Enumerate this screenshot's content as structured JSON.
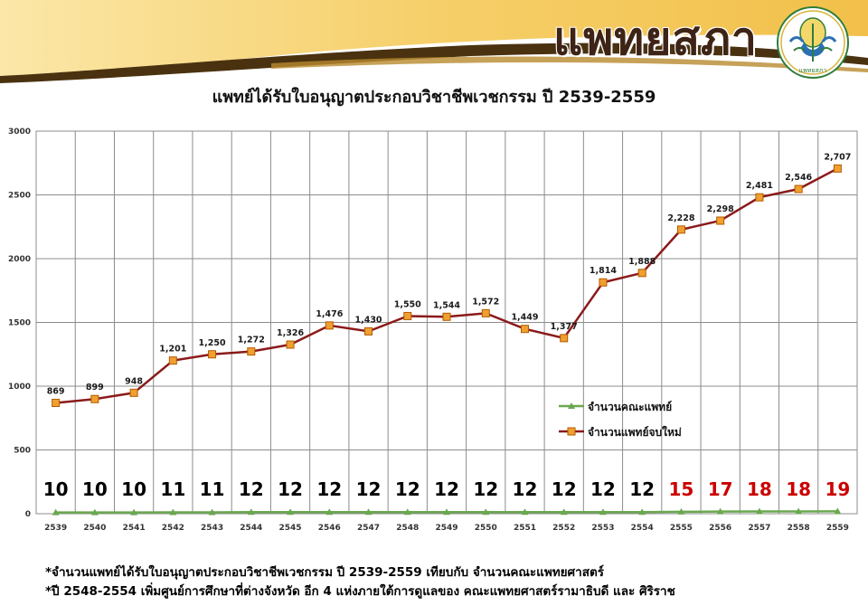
{
  "header": {
    "brand_title": "แพทยสภา",
    "logo_text": "แพทยสภา"
  },
  "colors": {
    "new_doctors_line": "#8b1a1a",
    "new_doctors_marker": "#f0a030",
    "faculties_line": "#6aa84f",
    "faculty_count_normal": "#000000",
    "faculty_count_highlight": "#cc0000",
    "banner_gold": "#f5c85e",
    "banner_dark": "#4a3210"
  },
  "chart_data": {
    "type": "line",
    "title": "แพทย์ได้รับใบอนุญาตประกอบวิชาชีพเวชกรรม ปี 2539-2559",
    "categories": [
      "2539",
      "2540",
      "2541",
      "2542",
      "2543",
      "2544",
      "2545",
      "2546",
      "2547",
      "2548",
      "2549",
      "2550",
      "2551",
      "2552",
      "2553",
      "2554",
      "2555",
      "2556",
      "2557",
      "2558",
      "2559"
    ],
    "ylim": [
      0,
      3000
    ],
    "yticks": [
      0,
      500,
      1000,
      1500,
      2000,
      2500,
      3000
    ],
    "grid": true,
    "legend_position": "right",
    "series": [
      {
        "name": "จำนวนคณะแพทย์",
        "marker": "triangle",
        "values": [
          10,
          10,
          10,
          11,
          11,
          12,
          12,
          12,
          12,
          12,
          12,
          12,
          12,
          12,
          12,
          12,
          15,
          17,
          18,
          18,
          19
        ]
      },
      {
        "name": "จำนวนแพทย์จบใหม่",
        "marker": "square",
        "values": [
          869,
          899,
          948,
          1201,
          1250,
          1272,
          1326,
          1476,
          1430,
          1550,
          1544,
          1572,
          1449,
          1377,
          1814,
          1888,
          2228,
          2298,
          2481,
          2546,
          2707
        ]
      }
    ],
    "new_doctor_labels": [
      "869",
      "899",
      "948",
      "1,201",
      "1,250",
      "1,272",
      "1,326",
      "1,476",
      "1,430",
      "1,550",
      "1,544",
      "1,572",
      "1,449",
      "1,377",
      "1,814",
      "1,888",
      "2,228",
      "2,298",
      "2,481",
      "2,546",
      "2,707"
    ],
    "faculty_labels": [
      "10",
      "10",
      "10",
      "11",
      "11",
      "12",
      "12",
      "12",
      "12",
      "12",
      "12",
      "12",
      "12",
      "12",
      "12",
      "12",
      "15",
      "17",
      "18",
      "18",
      "19"
    ],
    "highlight_from_index": 16
  },
  "notes": [
    "*จำนวนแพทย์ได้รับใบอนุญาตประกอบวิชาชีพเวชกรรม ปี 2539-2559  เทียบกับ จำนวนคณะแพทยศาสตร์",
    "*ปี 2548-2554 เพิ่มศูนย์การศึกษาที่ต่างจังหวัด อีก 4 แห่งภายใต้การดูแลของ คณะแพทยศาสตร์รามาธิบดี และ ศิริราช"
  ]
}
